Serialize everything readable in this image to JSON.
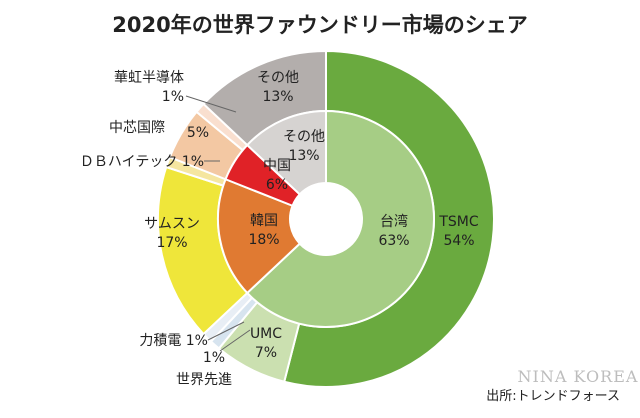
{
  "chart_data": {
    "type": "pie",
    "title": "2020年の世界ファウンドリー市場のシェア",
    "source": "出所:トレンドフォース",
    "watermark": "NINA KOREA",
    "outer": [
      {
        "name": "TSMC",
        "value": 54,
        "label": "54%",
        "color": "#6aaa3f"
      },
      {
        "name": "UMC",
        "value": 7,
        "label": "7%",
        "color": "#cbe0b0"
      },
      {
        "name": "世界先進",
        "value": 1,
        "label": "1%",
        "color": "#d7e4ef"
      },
      {
        "name": "力積電",
        "value": 1,
        "label": "1%",
        "color": "#e8eef5"
      },
      {
        "name": "サムスン",
        "value": 17,
        "label": "17%",
        "color": "#efe63a"
      },
      {
        "name": "ＤＢハイテック",
        "value": 1,
        "label": "1%",
        "color": "#f5e6a0"
      },
      {
        "name": "中芯国際",
        "value": 5,
        "label": "5%",
        "color": "#f3c8a3"
      },
      {
        "name": "華虹半導体",
        "value": 1,
        "label": "1%",
        "color": "#f9dfcf"
      },
      {
        "name": "その他",
        "value": 13,
        "label": "13%",
        "color": "#b3aeac"
      }
    ],
    "inner": [
      {
        "name": "台湾",
        "value": 63,
        "label": "63%",
        "color": "#a6cd85"
      },
      {
        "name": "韓国",
        "value": 18,
        "label": "18%",
        "color": "#e07a32"
      },
      {
        "name": "中国",
        "value": 6,
        "label": "6%",
        "color": "#e02227"
      },
      {
        "name": "その他",
        "value": 13,
        "label": "13%",
        "color": "#d6d3d1"
      }
    ]
  }
}
